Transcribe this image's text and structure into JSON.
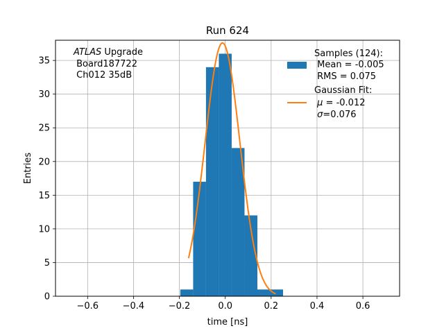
{
  "chart_data": {
    "type": "bar",
    "title": "Run 624",
    "xlabel": "time [ns]",
    "ylabel": "Entries",
    "xlim": [
      -0.74,
      0.76
    ],
    "ylim": [
      0,
      38
    ],
    "grid": true,
    "xticks": [
      -0.6,
      -0.4,
      -0.2,
      0.0,
      0.2,
      0.4,
      0.6
    ],
    "xtick_labels": [
      "−0.6",
      "−0.4",
      "−0.2",
      "0.0",
      "0.2",
      "0.4",
      "0.6"
    ],
    "yticks": [
      0,
      5,
      10,
      15,
      20,
      25,
      30,
      35
    ],
    "ytick_labels": [
      "0",
      "5",
      "10",
      "15",
      "20",
      "25",
      "30",
      "35"
    ],
    "annotation": {
      "line1_italic": "ATLAS",
      "line1_rest": " Upgrade",
      "line2": " Board187722",
      "line3": " Ch012 35dB"
    },
    "legend": {
      "placement": "top-right",
      "histogram": {
        "color": "#1f77b4",
        "line1": "Samples (124):",
        "line2": " Mean = -0.005",
        "line3": " RMS = 0.075"
      },
      "fit": {
        "color": "#ff7f0e",
        "line1": "Gaussian Fit:",
        "line2_symbol": "μ",
        "line2_rest": " = -0.012",
        "line3_symbol": "σ",
        "line3_rest": "=0.076"
      }
    },
    "histogram": {
      "bin_edges": [
        -0.196,
        -0.14,
        -0.084,
        -0.028,
        0.028,
        0.084,
        0.14,
        0.196,
        0.252
      ],
      "counts": [
        1,
        17,
        34,
        36,
        22,
        12,
        1,
        1
      ]
    },
    "gaussian_fit": {
      "mu": -0.012,
      "sigma": 0.076,
      "amplitude": 37.6,
      "x_range": [
        -0.16,
        0.22
      ]
    }
  }
}
